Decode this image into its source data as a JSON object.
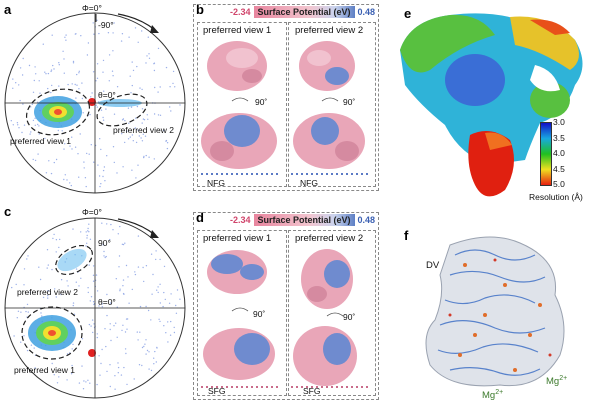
{
  "panels": {
    "a": {
      "label": "a",
      "phi_label": "Φ=0°",
      "angle_label": "-90°",
      "theta_label": "θ=0°",
      "view1": "preferred view 1",
      "view2": "preferred view 2"
    },
    "b": {
      "label": "b",
      "sp_min": "-2.34",
      "sp_title": "Surface Potential (eV)",
      "sp_max": "0.48",
      "view1": "preferred view 1",
      "view2": "preferred view 2",
      "rot1": "90˚",
      "rot2": "90˚",
      "nfg1": "NFG",
      "nfg2": "NFG"
    },
    "c": {
      "label": "c",
      "phi_label": "Φ=0°",
      "angle_label": "90°",
      "theta_label": "θ=0°",
      "view1": "preferred view 1",
      "view2": "preferred view 2"
    },
    "d": {
      "label": "d",
      "sp_min": "-2.34",
      "sp_title": "Surface Potential (eV)",
      "sp_max": "0.48",
      "view1": "preferred view 1",
      "view2": "preferred view 2",
      "rot1": "90˚",
      "rot2": "90˚",
      "sfg1": "SFG",
      "sfg2": "SFG"
    },
    "e": {
      "label": "e",
      "colorbar_ticks": [
        "3.0",
        "3.5",
        "4.0",
        "4.5",
        "5.0"
      ],
      "colorbar_title": "Resolution (Å)",
      "colors": [
        "#1010c8",
        "#18a8e0",
        "#20c020",
        "#f0e020",
        "#e82010"
      ]
    },
    "f": {
      "label": "f",
      "dv": "DV",
      "mg_left": "Mg",
      "mg_left_sup": "2+",
      "mg_right": "Mg",
      "mg_right_sup": "2+"
    }
  }
}
